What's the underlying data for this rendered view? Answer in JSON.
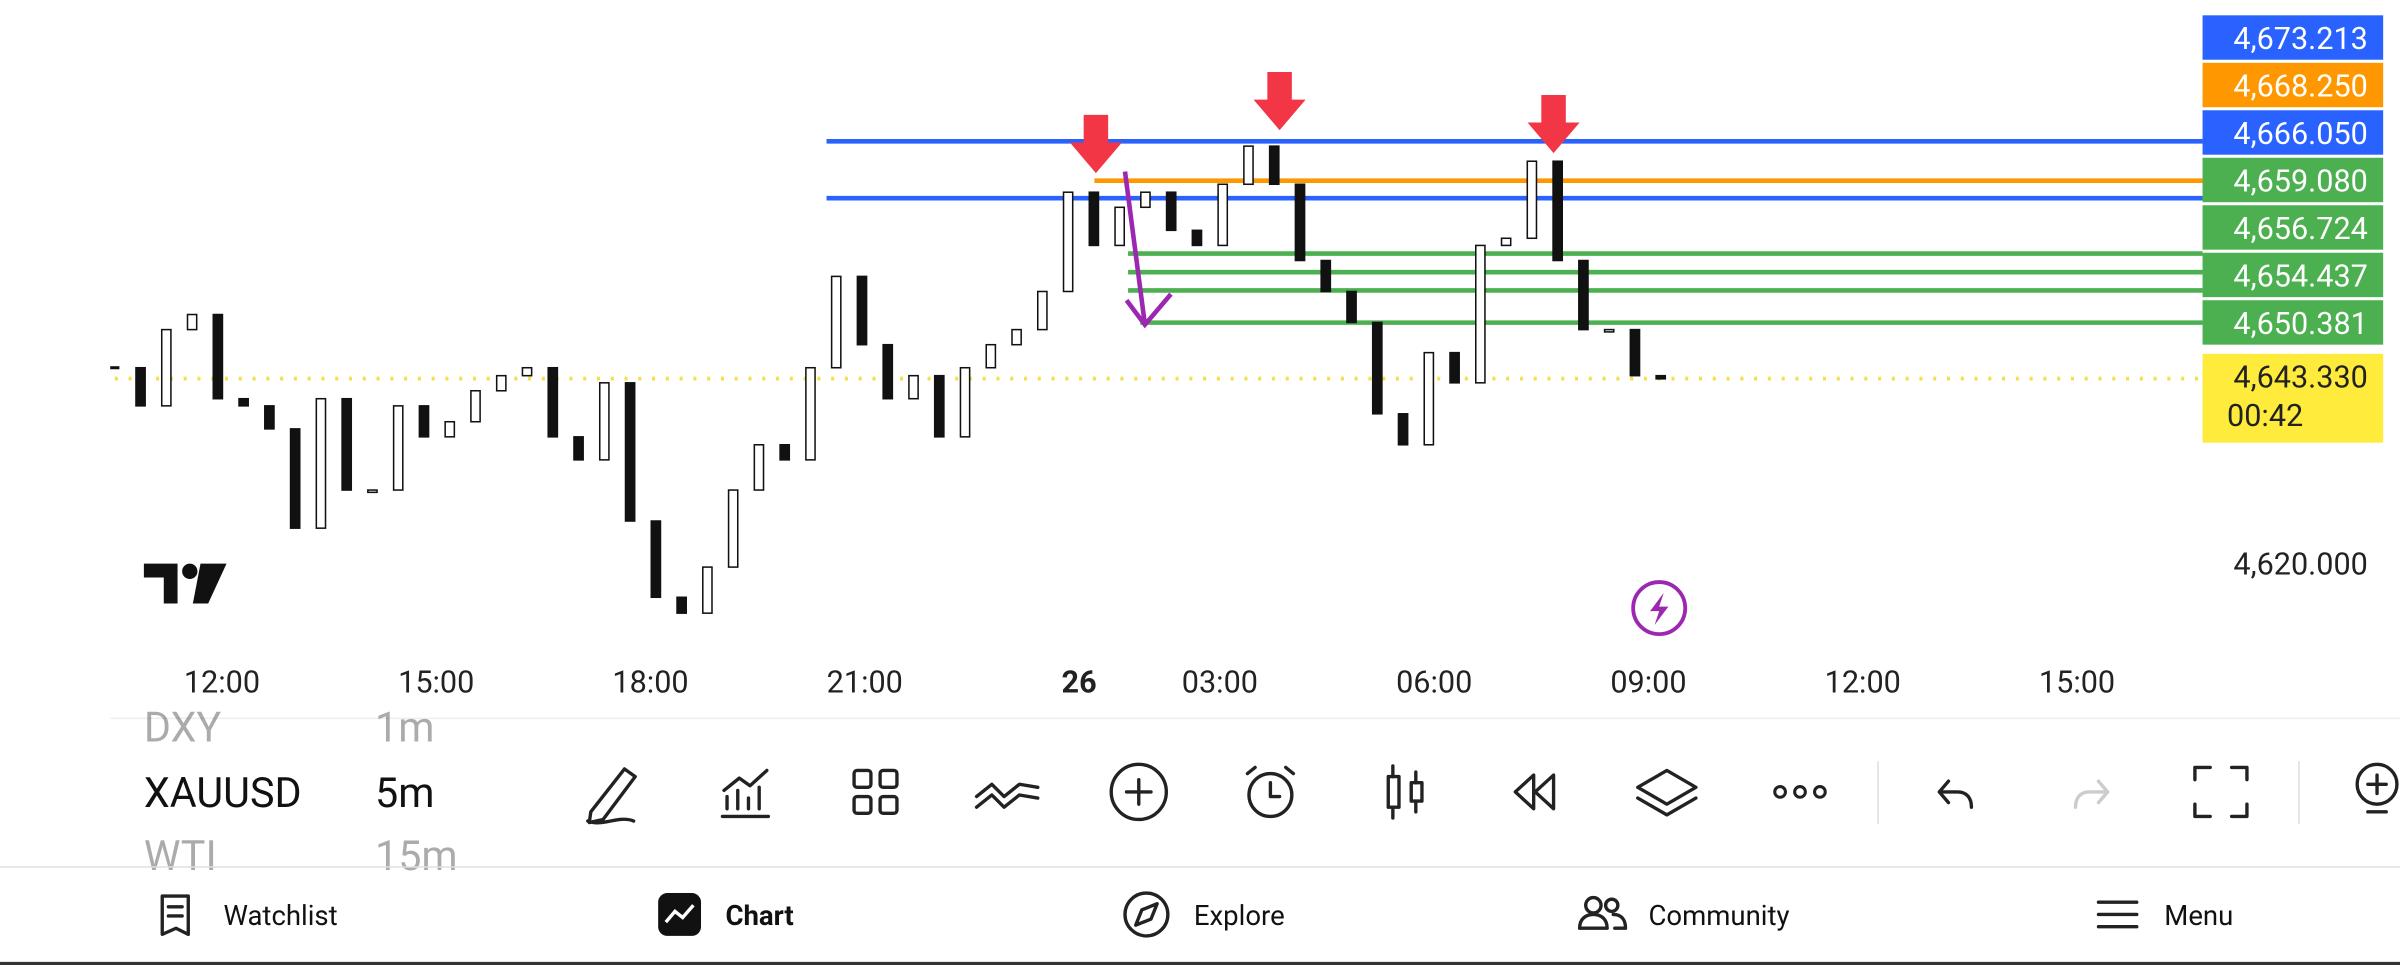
{
  "chart_data": {
    "type": "candlestick",
    "closes": [
      4644.7,
      4639.9,
      4649.5,
      4651.4,
      4640.8,
      4639.9,
      4637,
      4624.5,
      4640.8,
      4629.3,
      4629.3,
      4639.9,
      4636,
      4637.9,
      4641.8,
      4643.7,
      4644.7,
      4636,
      4633.1,
      4642.8,
      4625.4,
      4615.8,
      4613.8,
      4619.6,
      4629.3,
      4635,
      4633.1,
      4644.7,
      4656.2,
      4647.6,
      4640.8,
      4643.7,
      4636,
      4644.7,
      4647.6,
      4649.5,
      4654.3,
      4666.8,
      4660.1,
      4664.9,
      4666.8,
      4662,
      4660.1,
      4667.8,
      4672.6,
      4667.8,
      4658.2,
      4654.3,
      4650.4,
      4638.9,
      4635,
      4646.6,
      4642.8,
      4660.1,
      4661,
      4670.7,
      4658.2,
      4649.5,
      4649.5,
      4643.7,
      4643.3
    ],
    "ylim": [
      4610,
      4691
    ],
    "xticks": [
      "12:00",
      "15:00",
      "18:00",
      "21:00",
      "26",
      "03:00",
      "06:00",
      "09:00",
      "12:00",
      "15:00"
    ],
    "levels": [
      {
        "value": 4673.213,
        "label": "4,673.213",
        "color": "#2962ff"
      },
      {
        "value": 4668.25,
        "label": "4,668.250",
        "color": "#ff9800"
      },
      {
        "value": 4666.05,
        "label": "4,666.050",
        "color": "#2962ff"
      },
      {
        "value": 4659.08,
        "label": "4,659.080",
        "color": "#4caf50"
      },
      {
        "value": 4656.724,
        "label": "4,656.724",
        "color": "#4caf50"
      },
      {
        "value": 4654.437,
        "label": "4,654.437",
        "color": "#4caf50"
      },
      {
        "value": 4650.381,
        "label": "4,650.381",
        "color": "#4caf50"
      }
    ],
    "last": {
      "value": 4643.33,
      "label": "4,643.330",
      "countdown": "00:42",
      "color": "#ffeb3b"
    },
    "yticks": [
      {
        "value": 4620,
        "label": "4,620.000"
      }
    ]
  },
  "symbols": [
    {
      "symbol": "DXY",
      "interval": "1m"
    },
    {
      "symbol": "XAUUSD",
      "interval": "5m"
    },
    {
      "symbol": "WTI",
      "interval": "15m"
    }
  ],
  "nav": [
    "Watchlist",
    "Chart",
    "Explore",
    "Community",
    "Menu"
  ]
}
